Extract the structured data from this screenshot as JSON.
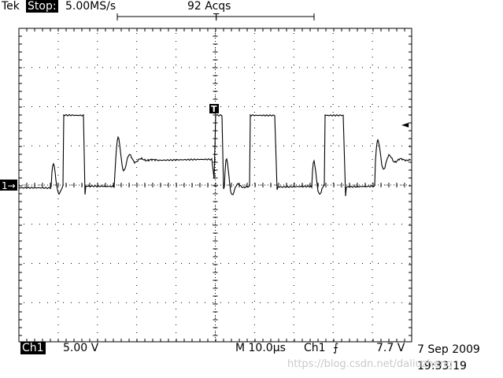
{
  "header": {
    "brand": "Tek",
    "run_state": "Stop:",
    "sample_rate": "5.00MS/s",
    "acquisitions": "92 Acqs",
    "trigger_marker": "T"
  },
  "scope": {
    "trigger_flag": "T",
    "ch1_marker": "1→",
    "trigger_level_marker": "◄"
  },
  "footer": {
    "channel": "Ch1",
    "volts_per_div": "5.00 V",
    "timebase": "M 10.0µs",
    "trigger_source": "Ch1",
    "trigger_slope": "⨍",
    "trigger_level": "7.7 V",
    "date": "7 Sep 2009",
    "time": "19:33:19"
  },
  "watermark": "https://blog.csdn.net/daliuzheng",
  "colors": {
    "trace": "#000000",
    "grid": "#000000",
    "background": "#ffffff"
  }
}
